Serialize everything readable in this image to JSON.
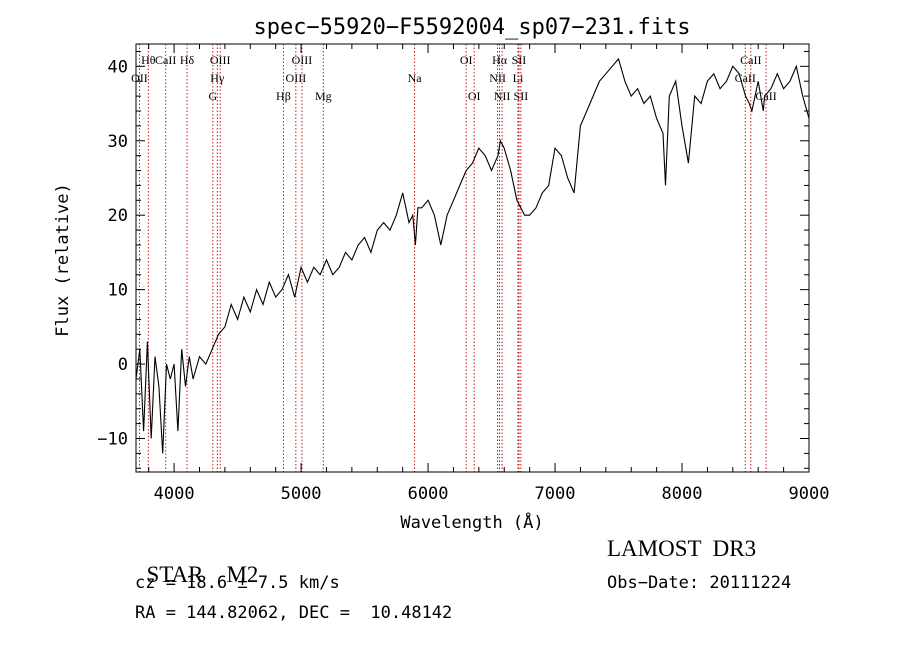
{
  "chart_data": {
    "type": "line",
    "title": "spec−55920−F5592004_sp07−231.fits",
    "xlabel": "Wavelength (Å)",
    "ylabel": "Flux (relative)",
    "xlim": [
      3700,
      9000
    ],
    "ylim": [
      -14.5,
      43
    ],
    "xticks": [
      4000,
      5000,
      6000,
      7000,
      8000,
      9000
    ],
    "xtick_labels": [
      "4000",
      "5000",
      "6000",
      "7000",
      "8000",
      "9000"
    ],
    "yticks": [
      -10,
      0,
      10,
      20,
      30,
      40
    ],
    "ytick_labels": [
      "−10",
      "0",
      "10",
      "20",
      "30",
      "40"
    ],
    "series": [
      {
        "name": "flux",
        "color": "#000000",
        "x": [
          3700,
          3730,
          3760,
          3790,
          3820,
          3850,
          3880,
          3910,
          3940,
          3970,
          4000,
          4030,
          4060,
          4090,
          4120,
          4150,
          4200,
          4250,
          4300,
          4350,
          4400,
          4450,
          4500,
          4550,
          4600,
          4650,
          4700,
          4750,
          4800,
          4850,
          4900,
          4950,
          5000,
          5050,
          5100,
          5150,
          5200,
          5250,
          5300,
          5350,
          5400,
          5450,
          5500,
          5550,
          5600,
          5650,
          5700,
          5750,
          5800,
          5850,
          5880,
          5900,
          5920,
          5950,
          6000,
          6050,
          6100,
          6150,
          6200,
          6250,
          6300,
          6350,
          6400,
          6450,
          6500,
          6550,
          6570,
          6600,
          6650,
          6700,
          6730,
          6760,
          6800,
          6850,
          6900,
          6950,
          7000,
          7050,
          7100,
          7150,
          7200,
          7250,
          7300,
          7350,
          7400,
          7450,
          7500,
          7550,
          7600,
          7650,
          7700,
          7750,
          7800,
          7850,
          7870,
          7900,
          7950,
          8000,
          8050,
          8100,
          8150,
          8200,
          8250,
          8300,
          8350,
          8400,
          8450,
          8500,
          8530,
          8550,
          8600,
          8640,
          8650,
          8700,
          8750,
          8800,
          8850,
          8900,
          8950,
          9000
        ],
        "values": [
          -2,
          2,
          -9,
          3,
          -10,
          1,
          -3,
          -12,
          0,
          -2,
          0,
          -9,
          2,
          -3,
          1,
          -2,
          1,
          0,
          2,
          4,
          5,
          8,
          6,
          9,
          7,
          10,
          8,
          11,
          9,
          10,
          12,
          9,
          13,
          11,
          13,
          12,
          14,
          12,
          13,
          15,
          14,
          16,
          17,
          15,
          18,
          19,
          18,
          20,
          23,
          19,
          20,
          16,
          21,
          21,
          22,
          20,
          16,
          20,
          22,
          24,
          26,
          27,
          29,
          28,
          26,
          28,
          30,
          29,
          26,
          22,
          21,
          20,
          20,
          21,
          23,
          24,
          29,
          28,
          25,
          23,
          32,
          34,
          36,
          38,
          39,
          40,
          41,
          38,
          36,
          37,
          35,
          36,
          33,
          31,
          24,
          36,
          38,
          32,
          27,
          36,
          35,
          38,
          39,
          37,
          38,
          40,
          39,
          36,
          35,
          34,
          38,
          34,
          36,
          37,
          39,
          37,
          38,
          40,
          36,
          33
        ]
      }
    ],
    "line_markers": [
      {
        "name": "Hθ",
        "x": 3797,
        "row": 0
      },
      {
        "name": "OII",
        "x": 3727,
        "row": 1
      },
      {
        "name": "CaII",
        "x": 3934,
        "row": 0
      },
      {
        "name": "Hδ",
        "x": 4102,
        "row": 0
      },
      {
        "name": "OIII",
        "x": 4363,
        "row": 0
      },
      {
        "name": "Hγ",
        "x": 4340,
        "row": 1
      },
      {
        "name": "G",
        "x": 4305,
        "row": 2
      },
      {
        "name": "Hβ",
        "x": 4861,
        "row": 2
      },
      {
        "name": "OIII",
        "x": 5007,
        "row": 0
      },
      {
        "name": "OIII",
        "x": 4959,
        "row": 1
      },
      {
        "name": "Mg",
        "x": 5175,
        "row": 2
      },
      {
        "name": "Na",
        "x": 5894,
        "row": 1
      },
      {
        "name": "OI",
        "x": 6300,
        "row": 0
      },
      {
        "name": "OI",
        "x": 6363,
        "row": 2
      },
      {
        "name": "Hα",
        "x": 6563,
        "row": 0
      },
      {
        "name": "NII",
        "x": 6548,
        "row": 1
      },
      {
        "name": "NII",
        "x": 6583,
        "row": 2
      },
      {
        "name": "SII",
        "x": 6716,
        "row": 0
      },
      {
        "name": "Li",
        "x": 6708,
        "row": 1
      },
      {
        "name": "SII",
        "x": 6731,
        "row": 2
      },
      {
        "name": "CaII",
        "x": 8542,
        "row": 0
      },
      {
        "name": "CaII",
        "x": 8498,
        "row": 1
      },
      {
        "name": "CaII",
        "x": 8662,
        "row": 2
      }
    ],
    "marker_color": "#c00000"
  },
  "object_class": "STAR",
  "subclass": "M2",
  "survey": "LAMOST  DR3",
  "cz_text": "cz = 18.6 ± 7.5 km/s",
  "obs_date": "Obs−Date: 20111224",
  "radec_text": "RA = 144.82062, DEC =  10.48142"
}
